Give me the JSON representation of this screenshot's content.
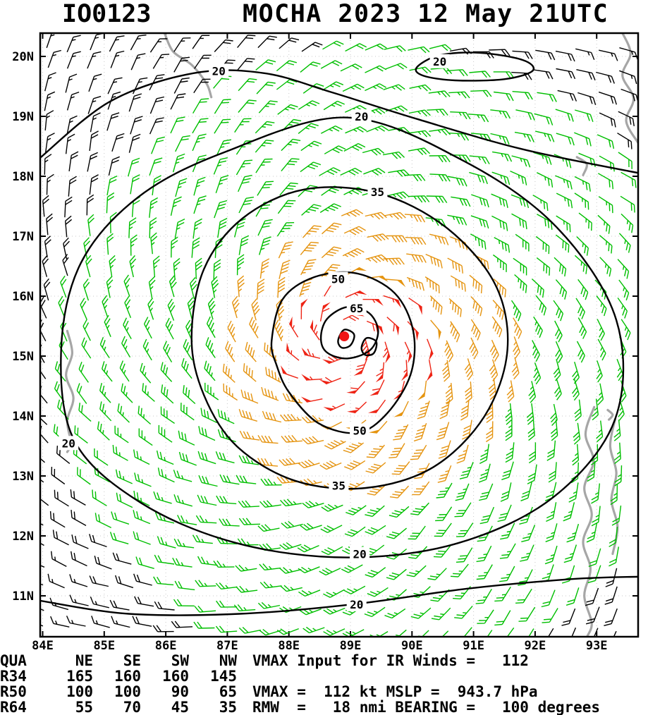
{
  "title": {
    "storm_id": "IO0123",
    "main": "MOCHA 2023 12 May 21UTC"
  },
  "chart_data": {
    "type": "wind_barb_map",
    "description": "Satellite IR-derived wind barbs with isotach contours (kt) for tropical cyclone MOCHA",
    "lon_ticks": [
      "84E",
      "85E",
      "86E",
      "87E",
      "88E",
      "89E",
      "90E",
      "91E",
      "92E",
      "93E"
    ],
    "lat_ticks": [
      "11N",
      "12N",
      "13N",
      "14N",
      "15N",
      "16N",
      "17N",
      "18N",
      "19N",
      "20N"
    ],
    "lon_range": [
      83.96,
      93.674
    ],
    "lat_range": [
      10.318,
      20.388
    ],
    "center": {
      "lon": 88.9,
      "lat": 15.33
    },
    "contour_levels_kt": [
      20,
      35,
      50,
      65
    ],
    "barb_colors": {
      "black_lt20": "#000000",
      "green_20to35": "#00bf00",
      "orange_35to50": "#e59410",
      "red_ge50": "#ee2415"
    },
    "coastline_color": "#a6a6a6",
    "storm": {
      "vmax_kt": 112,
      "mslp_hpa": 943.7,
      "rmw_nmi": 18,
      "bearing_deg": 100,
      "vmax_input_ir_kt": 112
    },
    "wind_radii_nmi": {
      "quadrants": [
        "NE",
        "SE",
        "SW",
        "NW"
      ],
      "R34": [
        165,
        160,
        160,
        145
      ],
      "R50": [
        100,
        100,
        90,
        65
      ],
      "R64": [
        55,
        70,
        45,
        35
      ]
    },
    "contours": [
      {
        "level": 20,
        "closed": false,
        "points": [
          [
            83.95,
            18.3
          ],
          [
            85.1,
            19.25
          ],
          [
            86.45,
            19.72
          ],
          [
            87.6,
            19.72
          ],
          [
            88.7,
            19.4
          ],
          [
            90.1,
            18.95
          ],
          [
            91.8,
            18.45
          ],
          [
            93.7,
            18.05
          ]
        ],
        "labels": [
          [
            86.86,
            19.76
          ]
        ]
      },
      {
        "level": 20,
        "closed": true,
        "points": [
          [
            90.08,
            19.82
          ],
          [
            90.45,
            20.02
          ],
          [
            91.1,
            20.06
          ],
          [
            91.8,
            19.94
          ],
          [
            91.96,
            19.76
          ],
          [
            91.5,
            19.62
          ],
          [
            90.7,
            19.6
          ],
          [
            90.18,
            19.68
          ]
        ],
        "labels": [
          [
            90.45,
            19.92
          ]
        ]
      },
      {
        "level": 20,
        "closed": true,
        "points": [
          [
            84.3,
            15.1
          ],
          [
            84.62,
            16.55
          ],
          [
            85.55,
            17.65
          ],
          [
            86.95,
            18.4
          ],
          [
            88.95,
            18.98
          ],
          [
            90.85,
            18.25
          ],
          [
            92.35,
            17.15
          ],
          [
            93.32,
            15.6
          ],
          [
            93.3,
            13.95
          ],
          [
            92.3,
            12.65
          ],
          [
            90.75,
            11.88
          ],
          [
            88.95,
            11.64
          ],
          [
            87.15,
            11.88
          ],
          [
            85.6,
            12.55
          ],
          [
            84.52,
            13.58
          ]
        ],
        "labels": [
          [
            84.42,
            13.55
          ],
          [
            89.15,
            11.7
          ],
          [
            89.18,
            19.0
          ]
        ]
      },
      {
        "level": 20,
        "closed": false,
        "points": [
          [
            83.95,
            10.92
          ],
          [
            85.4,
            10.7
          ],
          [
            87.2,
            10.7
          ],
          [
            89.05,
            10.86
          ],
          [
            90.9,
            11.12
          ],
          [
            92.6,
            11.28
          ],
          [
            93.7,
            11.32
          ]
        ],
        "labels": [
          [
            89.1,
            10.86
          ]
        ]
      },
      {
        "level": 35,
        "closed": true,
        "points": [
          [
            86.42,
            15.3
          ],
          [
            86.62,
            16.45
          ],
          [
            87.25,
            17.3
          ],
          [
            88.25,
            17.78
          ],
          [
            89.45,
            17.72
          ],
          [
            90.55,
            17.15
          ],
          [
            91.35,
            16.2
          ],
          [
            91.55,
            15.1
          ],
          [
            91.18,
            14.0
          ],
          [
            90.35,
            13.15
          ],
          [
            89.25,
            12.8
          ],
          [
            88.1,
            12.92
          ],
          [
            87.15,
            13.5
          ],
          [
            86.62,
            14.35
          ]
        ],
        "labels": [
          [
            89.44,
            17.74
          ],
          [
            88.81,
            12.84
          ]
        ]
      },
      {
        "level": 50,
        "closed": true,
        "points": [
          [
            87.72,
            15.25
          ],
          [
            87.9,
            15.95
          ],
          [
            88.42,
            16.32
          ],
          [
            89.1,
            16.38
          ],
          [
            89.72,
            16.05
          ],
          [
            90.02,
            15.42
          ],
          [
            89.98,
            14.7
          ],
          [
            89.6,
            14.05
          ],
          [
            89.12,
            13.72
          ],
          [
            88.48,
            13.88
          ],
          [
            88.0,
            14.4
          ],
          [
            87.8,
            14.85
          ]
        ],
        "labels": [
          [
            88.8,
            16.29
          ],
          [
            89.15,
            13.76
          ]
        ]
      },
      {
        "level": 65,
        "closed": true,
        "points": [
          [
            88.52,
            15.3
          ],
          [
            88.62,
            15.62
          ],
          [
            88.95,
            15.82
          ],
          [
            89.3,
            15.72
          ],
          [
            89.45,
            15.42
          ],
          [
            89.32,
            15.1
          ],
          [
            88.95,
            14.96
          ],
          [
            88.62,
            15.06
          ]
        ],
        "labels": [
          [
            89.1,
            15.8
          ]
        ]
      },
      {
        "level": "",
        "closed": true,
        "points": [
          [
            88.8,
            15.26
          ],
          [
            88.9,
            15.44
          ],
          [
            89.06,
            15.36
          ],
          [
            89.0,
            15.18
          ],
          [
            88.86,
            15.14
          ]
        ],
        "labels": []
      },
      {
        "level": "",
        "closed": true,
        "points": [
          [
            89.18,
            15.14
          ],
          [
            89.26,
            15.3
          ],
          [
            89.42,
            15.24
          ],
          [
            89.38,
            15.05
          ],
          [
            89.24,
            15.02
          ]
        ],
        "labels": []
      }
    ],
    "coastlines": [
      [
        [
          85.98,
          20.39
        ],
        [
          86.12,
          20.08
        ],
        [
          86.42,
          19.86
        ],
        [
          86.66,
          19.55
        ],
        [
          86.74,
          19.32
        ]
      ],
      [
        [
          84.4,
          15.42
        ],
        [
          84.48,
          15.05
        ],
        [
          84.38,
          14.68
        ],
        [
          84.5,
          14.3
        ],
        [
          84.4,
          13.92
        ],
        [
          84.46,
          13.55
        ],
        [
          84.4,
          13.4
        ]
      ],
      [
        [
          92.96,
          14.15
        ],
        [
          92.82,
          13.7
        ],
        [
          92.95,
          13.25
        ],
        [
          92.8,
          12.8
        ],
        [
          92.92,
          12.35
        ],
        [
          92.78,
          11.9
        ],
        [
          92.9,
          11.45
        ],
        [
          92.8,
          11.0
        ],
        [
          92.92,
          10.55
        ],
        [
          92.85,
          10.33
        ]
      ],
      [
        [
          93.3,
          13.95
        ],
        [
          93.22,
          13.5
        ],
        [
          93.32,
          13.05
        ],
        [
          93.24,
          12.6
        ],
        [
          93.34,
          12.15
        ],
        [
          93.26,
          11.7
        ]
      ],
      [
        [
          93.42,
          20.39
        ],
        [
          93.55,
          20.05
        ],
        [
          93.42,
          19.68
        ],
        [
          93.6,
          19.3
        ],
        [
          93.48,
          18.92
        ],
        [
          93.68,
          18.55
        ]
      ],
      [
        [
          92.68,
          18.32
        ],
        [
          92.84,
          18.2
        ],
        [
          92.78,
          18.02
        ]
      ],
      [
        [
          93.18,
          14.1
        ],
        [
          93.26,
          14.02
        ],
        [
          93.2,
          13.94
        ]
      ]
    ]
  },
  "footer": {
    "header": {
      "label": "QUA",
      "cols": [
        "NE",
        "SE",
        "SW",
        "NW"
      ],
      "right": "VMAX Input for IR Winds =   112"
    },
    "rows": [
      {
        "label": "R34",
        "values": [
          "165",
          "160",
          "160",
          "145"
        ],
        "right": ""
      },
      {
        "label": "R50",
        "values": [
          "100",
          "100",
          "90",
          "65"
        ],
        "right": "VMAX =  112 kt MSLP =  943.7 hPa"
      },
      {
        "label": "R64",
        "values": [
          "55",
          "70",
          "45",
          "35"
        ],
        "right": "RMW  =   18 nmi BEARING =   100 degrees"
      }
    ]
  }
}
